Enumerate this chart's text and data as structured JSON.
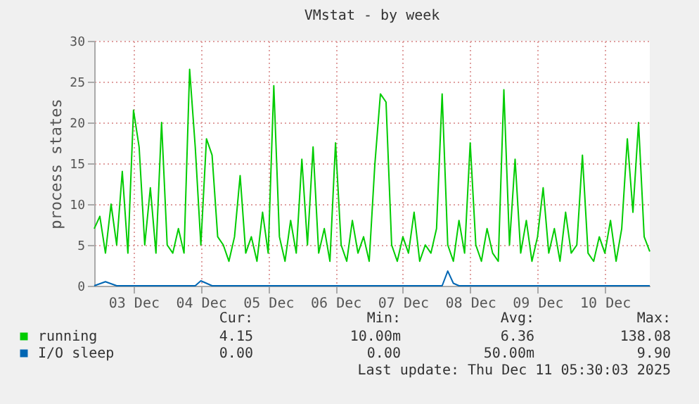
{
  "chart_data": {
    "type": "line",
    "title": "VMstat - by week",
    "ylabel": "process states",
    "x": [
      "2025-12-02T22:00",
      "2025-12-03T00:00",
      "2025-12-03T02:00",
      "2025-12-03T04:00",
      "2025-12-03T06:00",
      "2025-12-03T08:00",
      "2025-12-03T10:00",
      "2025-12-03T12:00",
      "2025-12-03T14:00",
      "2025-12-03T16:00",
      "2025-12-03T18:00",
      "2025-12-03T20:00",
      "2025-12-03T22:00",
      "2025-12-04T00:00",
      "2025-12-04T02:00",
      "2025-12-04T04:00",
      "2025-12-04T06:00",
      "2025-12-04T08:00",
      "2025-12-04T10:00",
      "2025-12-04T12:00",
      "2025-12-04T14:00",
      "2025-12-04T16:00",
      "2025-12-04T18:00",
      "2025-12-04T20:00",
      "2025-12-04T22:00",
      "2025-12-05T00:00",
      "2025-12-05T02:00",
      "2025-12-05T04:00",
      "2025-12-05T06:00",
      "2025-12-05T08:00",
      "2025-12-05T10:00",
      "2025-12-05T12:00",
      "2025-12-05T14:00",
      "2025-12-05T16:00",
      "2025-12-05T18:00",
      "2025-12-05T20:00",
      "2025-12-05T22:00",
      "2025-12-06T00:00",
      "2025-12-06T02:00",
      "2025-12-06T04:00",
      "2025-12-06T06:00",
      "2025-12-06T08:00",
      "2025-12-06T10:00",
      "2025-12-06T12:00",
      "2025-12-06T14:00",
      "2025-12-06T16:00",
      "2025-12-06T18:00",
      "2025-12-06T20:00",
      "2025-12-06T22:00",
      "2025-12-07T00:00",
      "2025-12-07T02:00",
      "2025-12-07T04:00",
      "2025-12-07T06:00",
      "2025-12-07T08:00",
      "2025-12-07T10:00",
      "2025-12-07T12:00",
      "2025-12-07T14:00",
      "2025-12-07T16:00",
      "2025-12-07T18:00",
      "2025-12-07T20:00",
      "2025-12-07T22:00",
      "2025-12-08T00:00",
      "2025-12-08T02:00",
      "2025-12-08T04:00",
      "2025-12-08T06:00",
      "2025-12-08T08:00",
      "2025-12-08T10:00",
      "2025-12-08T12:00",
      "2025-12-08T14:00",
      "2025-12-08T16:00",
      "2025-12-08T18:00",
      "2025-12-08T20:00",
      "2025-12-08T22:00",
      "2025-12-09T00:00",
      "2025-12-09T02:00",
      "2025-12-09T04:00",
      "2025-12-09T06:00",
      "2025-12-09T08:00",
      "2025-12-09T10:00",
      "2025-12-09T12:00",
      "2025-12-09T14:00",
      "2025-12-09T16:00",
      "2025-12-09T18:00",
      "2025-12-09T20:00",
      "2025-12-09T22:00",
      "2025-12-10T00:00",
      "2025-12-10T02:00",
      "2025-12-10T04:00",
      "2025-12-10T06:00",
      "2025-12-10T08:00",
      "2025-12-10T10:00",
      "2025-12-10T12:00",
      "2025-12-10T14:00",
      "2025-12-10T16:00",
      "2025-12-10T18:00",
      "2025-12-10T20:00",
      "2025-12-10T22:00",
      "2025-12-11T00:00",
      "2025-12-11T02:00",
      "2025-12-11T04:00"
    ],
    "series": [
      {
        "name": "running",
        "color": "#00cc00",
        "values": [
          7,
          8.5,
          4,
          10,
          5,
          14,
          4,
          21.5,
          17,
          5,
          12,
          4,
          20,
          5,
          4,
          7,
          4,
          26.5,
          17,
          5,
          18,
          16,
          6,
          5,
          3,
          6,
          13.5,
          4,
          6,
          3,
          9,
          4,
          24.5,
          6,
          3,
          8,
          4,
          15.5,
          5,
          17,
          4,
          7,
          3,
          17.5,
          5,
          3,
          8,
          4,
          6,
          3,
          14.8,
          23.5,
          22.5,
          5,
          3,
          6,
          4,
          9,
          3,
          5,
          4,
          7,
          23.5,
          5,
          3,
          8,
          4,
          17.5,
          5,
          3,
          7,
          4,
          3,
          24,
          5,
          15.5,
          4,
          8,
          3,
          6,
          12,
          4,
          7,
          3,
          9,
          4,
          5,
          16,
          4,
          3,
          6,
          4,
          8,
          3,
          7,
          18,
          9,
          20,
          6,
          4.2
        ]
      },
      {
        "name": "I/O sleep",
        "color": "#0066b3",
        "x": [
          "2025-12-02T22:00",
          "2025-12-03T02:00",
          "2025-12-03T06:00",
          "2025-12-04T10:00",
          "2025-12-04T12:00",
          "2025-12-04T16:00",
          "2025-12-08T02:00",
          "2025-12-08T04:00",
          "2025-12-08T06:00",
          "2025-12-08T08:00",
          "2025-12-11T04:00"
        ],
        "values": [
          0,
          0.5,
          0,
          0,
          0.6,
          0,
          0,
          1.8,
          0.3,
          0,
          0
        ]
      }
    ],
    "xlim": [
      "2025-12-02T22:00",
      "2025-12-11T04:00"
    ],
    "xticks": [
      {
        "value": "2025-12-03T12:00",
        "label": "03 Dec"
      },
      {
        "value": "2025-12-04T12:00",
        "label": "04 Dec"
      },
      {
        "value": "2025-12-05T12:00",
        "label": "05 Dec"
      },
      {
        "value": "2025-12-06T12:00",
        "label": "06 Dec"
      },
      {
        "value": "2025-12-07T12:00",
        "label": "07 Dec"
      },
      {
        "value": "2025-12-08T12:00",
        "label": "08 Dec"
      },
      {
        "value": "2025-12-09T12:00",
        "label": "09 Dec"
      },
      {
        "value": "2025-12-10T12:00",
        "label": "10 Dec"
      }
    ],
    "ylim": [
      0,
      30
    ],
    "yticks": [
      0,
      5,
      10,
      15,
      20,
      25,
      30
    ],
    "grid": true,
    "legend": "bottom",
    "line_style": "solid",
    "marker": "none",
    "annotations": [
      "Cur:",
      "Min:",
      "Avg:",
      "Max:",
      "4.15",
      "10.00m",
      "6.36",
      "138.08",
      "0.00",
      "0.00",
      "50.00m",
      "9.90",
      "Last update: Thu Dec 11 05:30:03 2025"
    ]
  }
}
